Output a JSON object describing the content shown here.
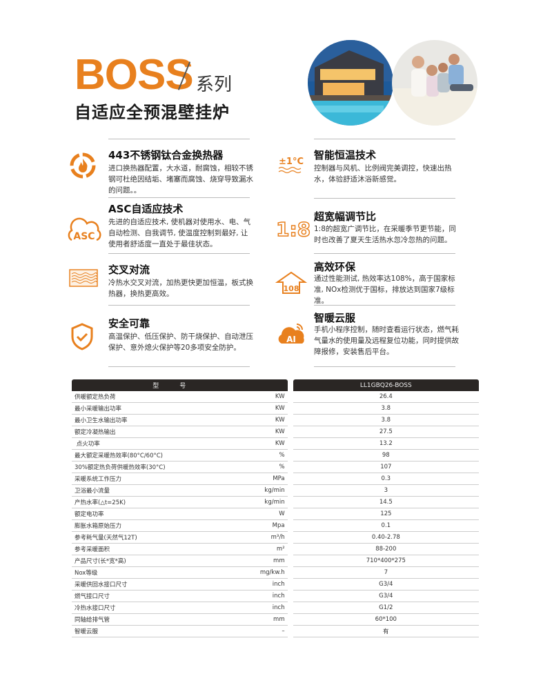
{
  "header": {
    "brand": "BOSS",
    "series": "系列",
    "subtitle": "自适应全预混壁挂炉",
    "brand_color": "#E8801E"
  },
  "images": [
    "house-with-pool-photo",
    "family-on-sofa-photo"
  ],
  "features_left": [
    {
      "icon": "flame-recycle-icon",
      "title": "443不锈钢钛合金换热器",
      "desc": "进口换热器配置，大水道，耐腐蚀，相较不锈钢可杜绝因结垢、堵塞而腐蚀、烧穿导致漏水的问题。。"
    },
    {
      "icon": "asc-cloud-icon",
      "title": "ASC自适应技术",
      "desc": "先进的自适应技术, 使机器对使用水、电、气自动检测、自我调节, 使温度控制到最好, 让使用者舒适度一直处于最佳状态。"
    },
    {
      "icon": "cross-flow-icon",
      "title": "交叉对流",
      "desc": "冷热水交叉对流，加热更快更加恒温，板式换热器，换热更高效。"
    },
    {
      "icon": "shield-check-icon",
      "title": "安全可靠",
      "desc": "高温保护、低压保护、防干烧保护、自动泄压保护、意外熄火保护等20多项安全防护。"
    }
  ],
  "features_right": [
    {
      "icon": "constant-temperature-icon",
      "icon_text": "±1°C",
      "title": "智能恒温技术",
      "desc": "控制器与风机、比例阀完美调控，快速出热水，体验舒适沐浴新感觉。"
    },
    {
      "icon": "ratio-icon",
      "icon_text": "1:8",
      "title": "超宽幅调节比",
      "desc": "1:8的超宽广调节比，在采暖季节更节能，同时也改善了夏天生活热水忽冷忽热的问题。"
    },
    {
      "icon": "efficiency-arrow-icon",
      "icon_text": "108",
      "title": "高效环保",
      "desc": "通过性能测试, 热效率达108%，高于国家标准, NOx检测优于国标，排放达到国家7级标准。"
    },
    {
      "icon": "ai-cloud-icon",
      "icon_text": "AI",
      "title": "智暖云服",
      "desc": "手机小程序控制，随时查看运行状态，燃气耗气量水的使用量及远程复位功能，同时提供故障报修，安装售后平台。"
    }
  ],
  "table": {
    "header_label": "型号",
    "model": "LL1GBQ26-BOSS",
    "rows": [
      {
        "name": "供暖额定热负荷",
        "unit": "KW",
        "value": "26.4"
      },
      {
        "name": "最小采暖输出功率",
        "unit": "KW",
        "value": "3.8"
      },
      {
        "name": "最小卫生水输出功率",
        "unit": "KW",
        "value": "3.8"
      },
      {
        "name": "额定冷凝热输出",
        "unit": "KW",
        "value": "27.5"
      },
      {
        "name": " 点火功率",
        "unit": "KW",
        "value": "13.2"
      },
      {
        "name": "最大额定采暖热效率(80°C/60°C)",
        "unit": "%",
        "value": "98"
      },
      {
        "name": "30%额定热负荷供暖热效率(30°C)",
        "unit": "%",
        "value": "107"
      },
      {
        "name": "采暖系统工作压力",
        "unit": "MPa",
        "value": "0.3"
      },
      {
        "name": "卫浴最小流量",
        "unit": "kg/min",
        "value": "3"
      },
      {
        "name": "产热水率(△t=25K)",
        "unit": "kg/min",
        "value": "14.5"
      },
      {
        "name": "额定电功率",
        "unit": "W",
        "value": "125"
      },
      {
        "name": "膨胀水箱原始压力",
        "unit": "Mpa",
        "value": "0.1"
      },
      {
        "name": "参考耗气量(天然气12T)",
        "unit": "m³/h",
        "value": "0.40-2.78"
      },
      {
        "name": "参考采暖面积",
        "unit": "m²",
        "value": "88-200"
      },
      {
        "name": "产品尺寸(长*宽*高)",
        "unit": "mm",
        "value": "710*400*275"
      },
      {
        "name": "Nox等级",
        "unit": "mg/kw.h",
        "value": "7"
      },
      {
        "name": "采暖供回水接口尺寸",
        "unit": "inch",
        "value": "G3/4"
      },
      {
        "name": "燃气接口尺寸",
        "unit": "inch",
        "value": "G3/4"
      },
      {
        "name": "冷热水接口尺寸",
        "unit": "inch",
        "value": "G1/2"
      },
      {
        "name": "同轴给排气管",
        "unit": "mm",
        "value": "60*100"
      },
      {
        "name": "智暖云服",
        "unit": "–",
        "value": "有"
      }
    ]
  }
}
